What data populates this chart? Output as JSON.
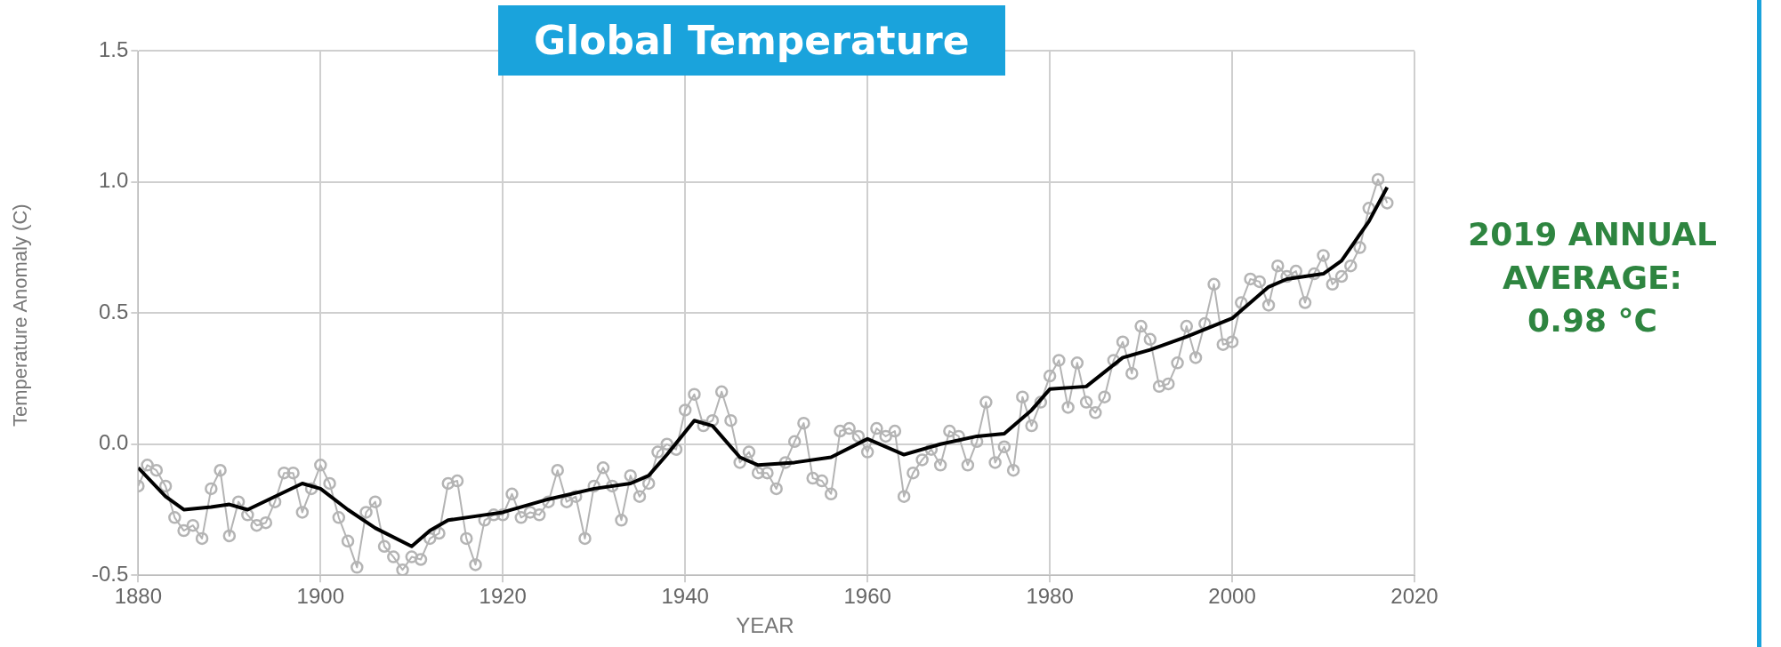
{
  "chart_data": {
    "type": "line",
    "title": "Global Temperature",
    "xlabel": "YEAR",
    "ylabel": "Temperature Anomaly (C)",
    "annotations": [
      "2019 ANNUAL AVERAGE: 0.98 °C"
    ],
    "xlim": [
      1880,
      2020
    ],
    "xticks": [
      1880,
      1900,
      1920,
      1940,
      1960,
      1980,
      2000,
      2020
    ],
    "ylim": [
      -0.5,
      1.5
    ],
    "yticks": [
      {
        "value": -0.5,
        "label": "-0.5"
      },
      {
        "value": 0,
        "label": "0.0"
      },
      {
        "value": 0.5,
        "label": "0.5"
      },
      {
        "value": 1,
        "label": "1.0"
      },
      {
        "value": 1.5,
        "label": "1.5"
      }
    ],
    "grid": true,
    "x": [
      1880,
      1881,
      1882,
      1883,
      1884,
      1885,
      1886,
      1887,
      1888,
      1889,
      1890,
      1891,
      1892,
      1893,
      1894,
      1895,
      1896,
      1897,
      1898,
      1899,
      1900,
      1901,
      1902,
      1903,
      1904,
      1905,
      1906,
      1907,
      1908,
      1909,
      1910,
      1911,
      1912,
      1913,
      1914,
      1915,
      1916,
      1917,
      1918,
      1919,
      1920,
      1921,
      1922,
      1923,
      1924,
      1925,
      1926,
      1927,
      1928,
      1929,
      1930,
      1931,
      1932,
      1933,
      1934,
      1935,
      1936,
      1937,
      1938,
      1939,
      1940,
      1941,
      1942,
      1943,
      1944,
      1945,
      1946,
      1947,
      1948,
      1949,
      1950,
      1951,
      1952,
      1953,
      1954,
      1955,
      1956,
      1957,
      1958,
      1959,
      1960,
      1961,
      1962,
      1963,
      1964,
      1965,
      1966,
      1967,
      1968,
      1969,
      1970,
      1971,
      1972,
      1973,
      1974,
      1975,
      1976,
      1977,
      1978,
      1979,
      1980,
      1981,
      1982,
      1983,
      1984,
      1985,
      1986,
      1987,
      1988,
      1989,
      1990,
      1991,
      1992,
      1993,
      1994,
      1995,
      1996,
      1997,
      1998,
      1999,
      2000,
      2001,
      2002,
      2003,
      2004,
      2005,
      2006,
      2007,
      2008,
      2009,
      2010,
      2011,
      2012,
      2013,
      2014,
      2015,
      2016,
      2017
    ],
    "series": [
      {
        "color": "#b4b4b4",
        "marker": "circle",
        "values": [
          -0.16,
          -0.08,
          -0.1,
          -0.16,
          -0.28,
          -0.33,
          -0.31,
          -0.36,
          -0.17,
          -0.1,
          -0.35,
          -0.22,
          -0.27,
          -0.31,
          -0.3,
          -0.22,
          -0.11,
          -0.11,
          -0.26,
          -0.17,
          -0.08,
          -0.15,
          -0.28,
          -0.37,
          -0.47,
          -0.26,
          -0.22,
          -0.39,
          -0.43,
          -0.48,
          -0.43,
          -0.44,
          -0.36,
          -0.34,
          -0.15,
          -0.14,
          -0.36,
          -0.46,
          -0.29,
          -0.27,
          -0.27,
          -0.19,
          -0.28,
          -0.26,
          -0.27,
          -0.22,
          -0.1,
          -0.22,
          -0.2,
          -0.36,
          -0.16,
          -0.09,
          -0.16,
          -0.29,
          -0.12,
          -0.2,
          -0.15,
          -0.03,
          0.0,
          -0.02,
          0.13,
          0.19,
          0.07,
          0.09,
          0.2,
          0.09,
          -0.07,
          -0.03,
          -0.11,
          -0.11,
          -0.17,
          -0.07,
          0.01,
          0.08,
          -0.13,
          -0.14,
          -0.19,
          0.05,
          0.06,
          0.03,
          -0.03,
          0.06,
          0.03,
          0.05,
          -0.2,
          -0.11,
          -0.06,
          -0.02,
          -0.08,
          0.05,
          0.03,
          -0.08,
          0.01,
          0.16,
          -0.07,
          -0.01,
          -0.1,
          0.18,
          0.07,
          0.16,
          0.26,
          0.32,
          0.14,
          0.31,
          0.16,
          0.12,
          0.18,
          0.32,
          0.39,
          0.27,
          0.45,
          0.4,
          0.22,
          0.23,
          0.31,
          0.45,
          0.33,
          0.46,
          0.61,
          0.38,
          0.39,
          0.54,
          0.63,
          0.62,
          0.53,
          0.68,
          0.64,
          0.66,
          0.54,
          0.65,
          0.72,
          0.61,
          0.64,
          0.68,
          0.75,
          0.9,
          1.01,
          0.92
        ]
      },
      {
        "color": "#000000",
        "marker": "none",
        "x": [
          1880,
          1883,
          1885,
          1888,
          1890,
          1892,
          1895,
          1898,
          1900,
          1903,
          1906,
          1910,
          1912,
          1914,
          1918,
          1920,
          1925,
          1930,
          1934,
          1936,
          1938,
          1941,
          1943,
          1946,
          1948,
          1952,
          1956,
          1960,
          1964,
          1968,
          1972,
          1975,
          1978,
          1980,
          1984,
          1988,
          1991,
          1995,
          2000,
          2004,
          2006,
          2010,
          2012,
          2015,
          2017
        ],
        "values": [
          -0.09,
          -0.2,
          -0.25,
          -0.24,
          -0.23,
          -0.25,
          -0.2,
          -0.15,
          -0.17,
          -0.25,
          -0.32,
          -0.39,
          -0.33,
          -0.29,
          -0.27,
          -0.26,
          -0.21,
          -0.17,
          -0.15,
          -0.12,
          -0.04,
          0.09,
          0.07,
          -0.05,
          -0.08,
          -0.07,
          -0.05,
          0.02,
          -0.04,
          0.0,
          0.03,
          0.04,
          0.13,
          0.21,
          0.22,
          0.33,
          0.36,
          0.41,
          0.48,
          0.6,
          0.63,
          0.65,
          0.7,
          0.85,
          0.98
        ]
      }
    ]
  }
}
